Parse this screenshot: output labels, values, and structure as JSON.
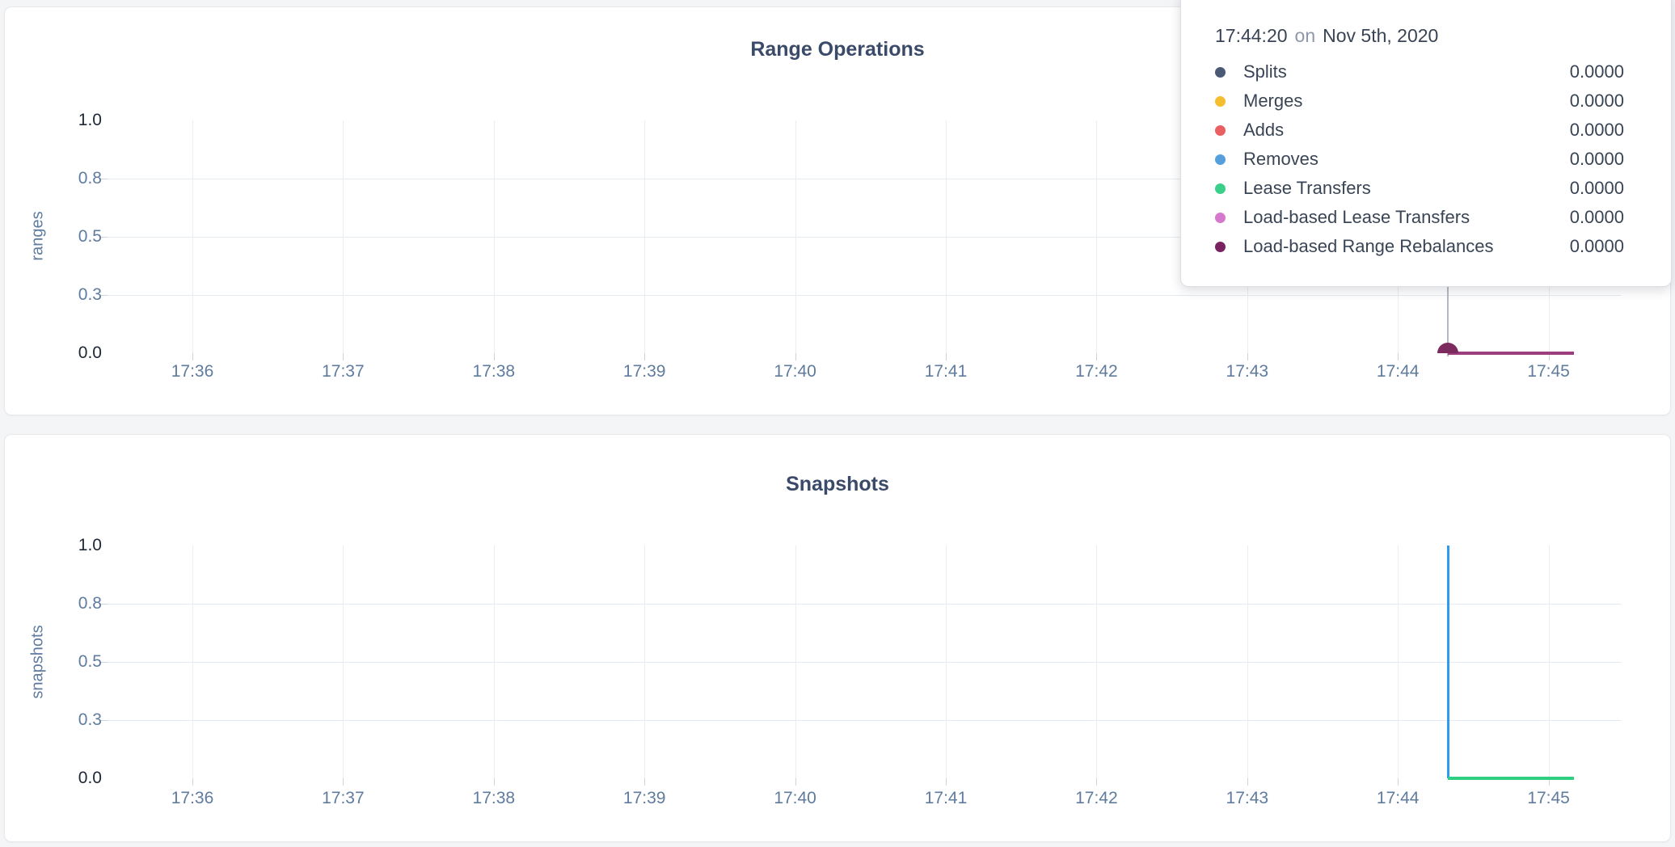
{
  "page": {
    "background": "#f4f5f7"
  },
  "tooltip": {
    "time": "17:44:20",
    "connector": "on",
    "date": "Nov 5th, 2020",
    "rows": [
      {
        "label": "Splits",
        "value": "0.0000",
        "color": "#4b5a74"
      },
      {
        "label": "Merges",
        "value": "0.0000",
        "color": "#f5bd30"
      },
      {
        "label": "Adds",
        "value": "0.0000",
        "color": "#ea5f62"
      },
      {
        "label": "Removes",
        "value": "0.0000",
        "color": "#55a0dc"
      },
      {
        "label": "Lease Transfers",
        "value": "0.0000",
        "color": "#3bd089"
      },
      {
        "label": "Load-based Lease Transfers",
        "value": "0.0000",
        "color": "#d678cc"
      },
      {
        "label": "Load-based Range Rebalances",
        "value": "0.0000",
        "color": "#7a2361"
      }
    ]
  },
  "chart_data": [
    {
      "type": "line",
      "title": "Range Operations",
      "ylabel": "ranges",
      "grid": true,
      "ylim": [
        0,
        1
      ],
      "x_ticks": [
        "17:36",
        "17:37",
        "17:38",
        "17:39",
        "17:40",
        "17:41",
        "17:42",
        "17:43",
        "17:44",
        "17:45"
      ],
      "y_ticks": [
        {
          "label": "1.0",
          "value": 1.0
        },
        {
          "label": "0.8",
          "value": 0.75
        },
        {
          "label": "0.5",
          "value": 0.5
        },
        {
          "label": "0.3",
          "value": 0.25
        },
        {
          "label": "0.0",
          "value": 0.0
        }
      ],
      "crosshair_x": "17:44:20",
      "series": [
        {
          "name": "Splits",
          "color": "#4b5a74",
          "points": [
            [
              "17:44:20",
              0
            ],
            [
              "17:45:10",
              0
            ]
          ]
        },
        {
          "name": "Merges",
          "color": "#f5bd30",
          "points": [
            [
              "17:44:20",
              0
            ],
            [
              "17:45:10",
              0
            ]
          ]
        },
        {
          "name": "Adds",
          "color": "#ea5f62",
          "points": [
            [
              "17:44:20",
              0
            ],
            [
              "17:45:10",
              0
            ]
          ]
        },
        {
          "name": "Removes",
          "color": "#55a0dc",
          "points": [
            [
              "17:44:20",
              0
            ],
            [
              "17:45:10",
              0
            ]
          ]
        },
        {
          "name": "Lease Transfers",
          "color": "#3bd089",
          "points": [
            [
              "17:44:20",
              0
            ],
            [
              "17:45:10",
              0
            ]
          ]
        },
        {
          "name": "Load-based Lease Transfers",
          "color": "#d678cc",
          "points": [
            [
              "17:44:20",
              0
            ],
            [
              "17:45:10",
              0
            ]
          ]
        },
        {
          "name": "Load-based Range Rebalances",
          "color": "#9d3e80",
          "points": [
            [
              "17:44:20",
              0
            ],
            [
              "17:45:10",
              0
            ]
          ],
          "marker": {
            "x": "17:44:20",
            "y": 0,
            "color": "#7d2b5f"
          }
        }
      ]
    },
    {
      "type": "line",
      "title": "Snapshots",
      "ylabel": "snapshots",
      "grid": true,
      "ylim": [
        0,
        1
      ],
      "x_ticks": [
        "17:36",
        "17:37",
        "17:38",
        "17:39",
        "17:40",
        "17:41",
        "17:42",
        "17:43",
        "17:44",
        "17:45"
      ],
      "y_ticks": [
        {
          "label": "1.0",
          "value": 1.0
        },
        {
          "label": "0.8",
          "value": 0.75
        },
        {
          "label": "0.5",
          "value": 0.5
        },
        {
          "label": "0.3",
          "value": 0.25
        },
        {
          "label": "0.0",
          "value": 0.0
        }
      ],
      "series": [
        {
          "color": "#2e9af0",
          "points": [
            [
              "17:44:20",
              1
            ],
            [
              "17:44:20",
              0
            ],
            [
              "17:45:10",
              0
            ]
          ]
        },
        {
          "color": "#2fcf82",
          "points": [
            [
              "17:44:20",
              0
            ],
            [
              "17:45:10",
              0
            ]
          ]
        }
      ]
    }
  ]
}
